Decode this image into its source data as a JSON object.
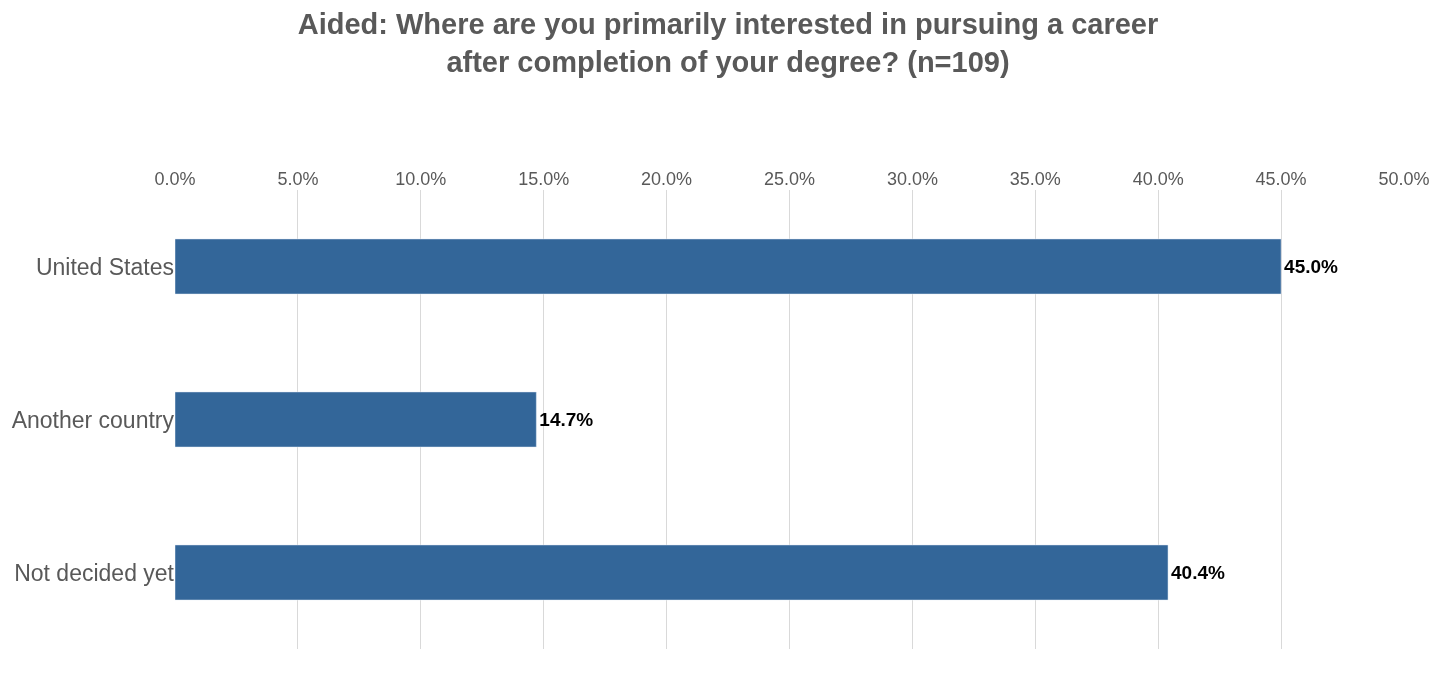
{
  "chart_data": {
    "type": "bar",
    "orientation": "horizontal",
    "title": "Aided: Where are you primarily interested in pursuing a career after completion of your degree? (n=109)",
    "categories": [
      "United States",
      "Another country",
      "Not decided yet"
    ],
    "values": [
      45.0,
      14.7,
      40.4
    ],
    "value_labels": [
      "45.0%",
      "14.7%",
      "40.4%"
    ],
    "color": "#336699",
    "xlim": [
      0,
      50
    ],
    "xticks": [
      {
        "value": 0,
        "label": "0.0%"
      },
      {
        "value": 5,
        "label": "5.0%"
      },
      {
        "value": 10,
        "label": "10.0%"
      },
      {
        "value": 15,
        "label": "15.0%"
      },
      {
        "value": 20,
        "label": "20.0%"
      },
      {
        "value": 25,
        "label": "25.0%"
      },
      {
        "value": 30,
        "label": "30.0%"
      },
      {
        "value": 35,
        "label": "35.0%"
      },
      {
        "value": 40,
        "label": "40.0%"
      },
      {
        "value": 45,
        "label": "45.0%"
      },
      {
        "value": 50,
        "label": "50.0%"
      }
    ],
    "grid": "x",
    "legend": false
  }
}
